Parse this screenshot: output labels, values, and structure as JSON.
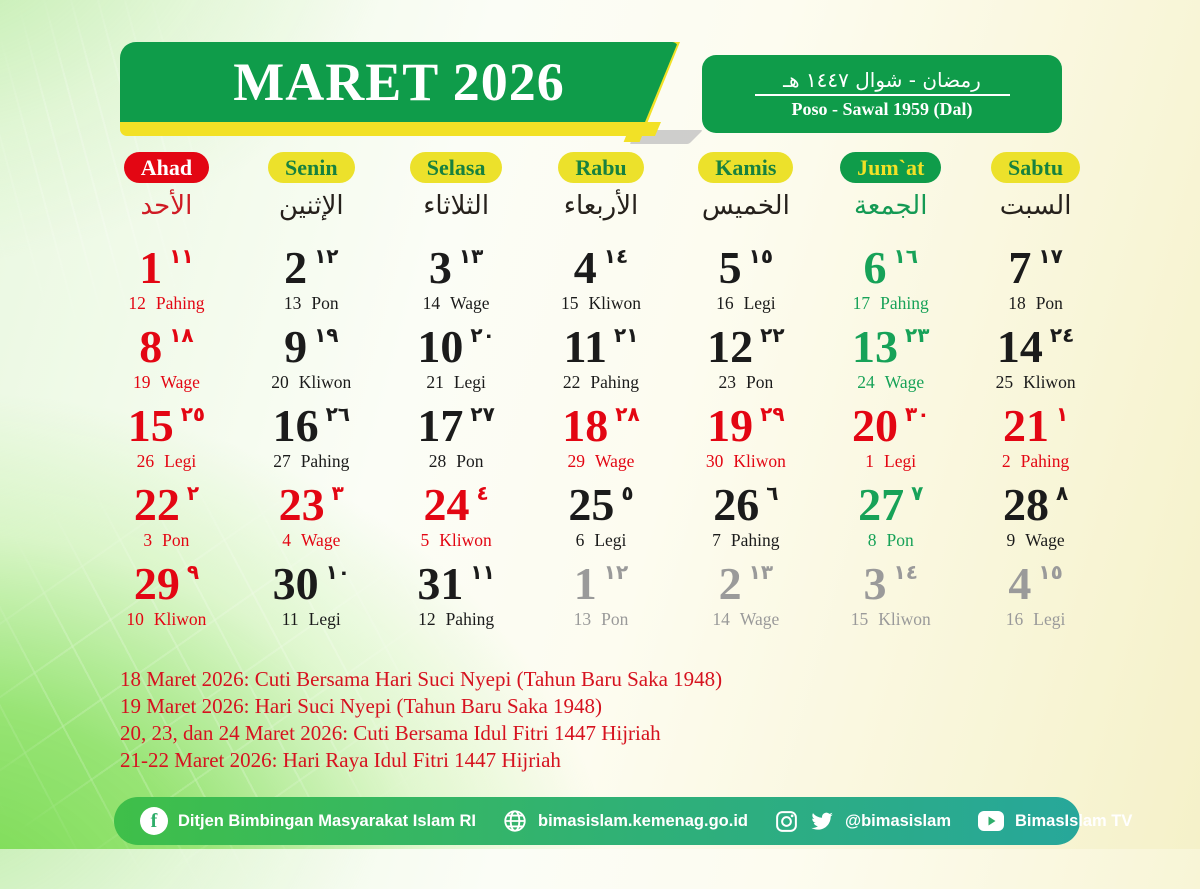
{
  "header": {
    "title": "MARET 2026",
    "hijri_range": "رمضان - شوال ١٤٤٧ هـ",
    "javanese_range": "Poso - Sawal 1959 (Dal)"
  },
  "colors": {
    "header_green": "#0f9c4a",
    "accent_yellow": "#f2e126",
    "holiday_red": "#e30613",
    "friday_green": "#17a258",
    "inactive_gray": "#9a9a9a"
  },
  "day_headers": [
    {
      "label": "Ahad",
      "arabic": "الأحد",
      "variant": "red",
      "arabic_color": "red"
    },
    {
      "label": "Senin",
      "arabic": "الإثنين",
      "variant": "yellow",
      "arabic_color": "black"
    },
    {
      "label": "Selasa",
      "arabic": "الثلاثاء",
      "variant": "yellow",
      "arabic_color": "black"
    },
    {
      "label": "Rabu",
      "arabic": "الأربعاء",
      "variant": "yellow",
      "arabic_color": "black"
    },
    {
      "label": "Kamis",
      "arabic": "الخميس",
      "variant": "yellow",
      "arabic_color": "black"
    },
    {
      "label": "Jum`at",
      "arabic": "الجمعة",
      "variant": "green",
      "arabic_color": "green"
    },
    {
      "label": "Sabtu",
      "arabic": "السبت",
      "variant": "yellow",
      "arabic_color": "black"
    }
  ],
  "weeks": [
    [
      {
        "date": "1",
        "hijri": "١١",
        "jav": "12",
        "pasaran": "Pahing",
        "color": "red"
      },
      {
        "date": "2",
        "hijri": "١٢",
        "jav": "13",
        "pasaran": "Pon",
        "color": "black"
      },
      {
        "date": "3",
        "hijri": "١٣",
        "jav": "14",
        "pasaran": "Wage",
        "color": "black"
      },
      {
        "date": "4",
        "hijri": "١٤",
        "jav": "15",
        "pasaran": "Kliwon",
        "color": "black"
      },
      {
        "date": "5",
        "hijri": "١٥",
        "jav": "16",
        "pasaran": "Legi",
        "color": "black"
      },
      {
        "date": "6",
        "hijri": "١٦",
        "jav": "17",
        "pasaran": "Pahing",
        "color": "green"
      },
      {
        "date": "7",
        "hijri": "١٧",
        "jav": "18",
        "pasaran": "Pon",
        "color": "black"
      }
    ],
    [
      {
        "date": "8",
        "hijri": "١٨",
        "jav": "19",
        "pasaran": "Wage",
        "color": "red"
      },
      {
        "date": "9",
        "hijri": "١٩",
        "jav": "20",
        "pasaran": "Kliwon",
        "color": "black"
      },
      {
        "date": "10",
        "hijri": "٢٠",
        "jav": "21",
        "pasaran": "Legi",
        "color": "black"
      },
      {
        "date": "11",
        "hijri": "٢١",
        "jav": "22",
        "pasaran": "Pahing",
        "color": "black"
      },
      {
        "date": "12",
        "hijri": "٢٢",
        "jav": "23",
        "pasaran": "Pon",
        "color": "black"
      },
      {
        "date": "13",
        "hijri": "٢٣",
        "jav": "24",
        "pasaran": "Wage",
        "color": "green"
      },
      {
        "date": "14",
        "hijri": "٢٤",
        "jav": "25",
        "pasaran": "Kliwon",
        "color": "black"
      }
    ],
    [
      {
        "date": "15",
        "hijri": "٢٥",
        "jav": "26",
        "pasaran": "Legi",
        "color": "red"
      },
      {
        "date": "16",
        "hijri": "٢٦",
        "jav": "27",
        "pasaran": "Pahing",
        "color": "black"
      },
      {
        "date": "17",
        "hijri": "٢٧",
        "jav": "28",
        "pasaran": "Pon",
        "color": "black"
      },
      {
        "date": "18",
        "hijri": "٢٨",
        "jav": "29",
        "pasaran": "Wage",
        "color": "red"
      },
      {
        "date": "19",
        "hijri": "٢٩",
        "jav": "30",
        "pasaran": "Kliwon",
        "color": "red"
      },
      {
        "date": "20",
        "hijri": "٣٠",
        "jav": "1",
        "pasaran": "Legi",
        "color": "red"
      },
      {
        "date": "21",
        "hijri": "١",
        "jav": "2",
        "pasaran": "Pahing",
        "color": "red"
      }
    ],
    [
      {
        "date": "22",
        "hijri": "٢",
        "jav": "3",
        "pasaran": "Pon",
        "color": "red"
      },
      {
        "date": "23",
        "hijri": "٣",
        "jav": "4",
        "pasaran": "Wage",
        "color": "red"
      },
      {
        "date": "24",
        "hijri": "٤",
        "jav": "5",
        "pasaran": "Kliwon",
        "color": "red"
      },
      {
        "date": "25",
        "hijri": "٥",
        "jav": "6",
        "pasaran": "Legi",
        "color": "black"
      },
      {
        "date": "26",
        "hijri": "٦",
        "jav": "7",
        "pasaran": "Pahing",
        "color": "black"
      },
      {
        "date": "27",
        "hijri": "٧",
        "jav": "8",
        "pasaran": "Pon",
        "color": "green"
      },
      {
        "date": "28",
        "hijri": "٨",
        "jav": "9",
        "pasaran": "Wage",
        "color": "black"
      }
    ],
    [
      {
        "date": "29",
        "hijri": "٩",
        "jav": "10",
        "pasaran": "Kliwon",
        "color": "red"
      },
      {
        "date": "30",
        "hijri": "١٠",
        "jav": "11",
        "pasaran": "Legi",
        "color": "black"
      },
      {
        "date": "31",
        "hijri": "١١",
        "jav": "12",
        "pasaran": "Pahing",
        "color": "black"
      },
      {
        "date": "1",
        "hijri": "١٢",
        "jav": "13",
        "pasaran": "Pon",
        "color": "gray"
      },
      {
        "date": "2",
        "hijri": "١٣",
        "jav": "14",
        "pasaran": "Wage",
        "color": "gray"
      },
      {
        "date": "3",
        "hijri": "١٤",
        "jav": "15",
        "pasaran": "Kliwon",
        "color": "gray"
      },
      {
        "date": "4",
        "hijri": "١٥",
        "jav": "16",
        "pasaran": "Legi",
        "color": "gray"
      }
    ]
  ],
  "notes": [
    "18 Maret 2026: Cuti Bersama Hari Suci Nyepi (Tahun Baru Saka 1948)",
    "19 Maret 2026: Hari Suci Nyepi (Tahun Baru Saka 1948)",
    "20, 23, dan 24 Maret 2026: Cuti Bersama Idul Fitri 1447 Hijriah",
    "21-22 Maret 2026: Hari Raya Idul Fitri 1447 Hijriah"
  ],
  "footer": {
    "items": [
      {
        "icon": "facebook-icon",
        "label": "Ditjen Bimbingan Masyarakat Islam RI"
      },
      {
        "icon": "globe-icon",
        "label": "bimasislam.kemenag.go.id"
      },
      {
        "icon": "instagram-twitter-icons",
        "label": "@bimasislam"
      },
      {
        "icon": "youtube-icon",
        "label": "BimasIslam TV"
      }
    ]
  }
}
